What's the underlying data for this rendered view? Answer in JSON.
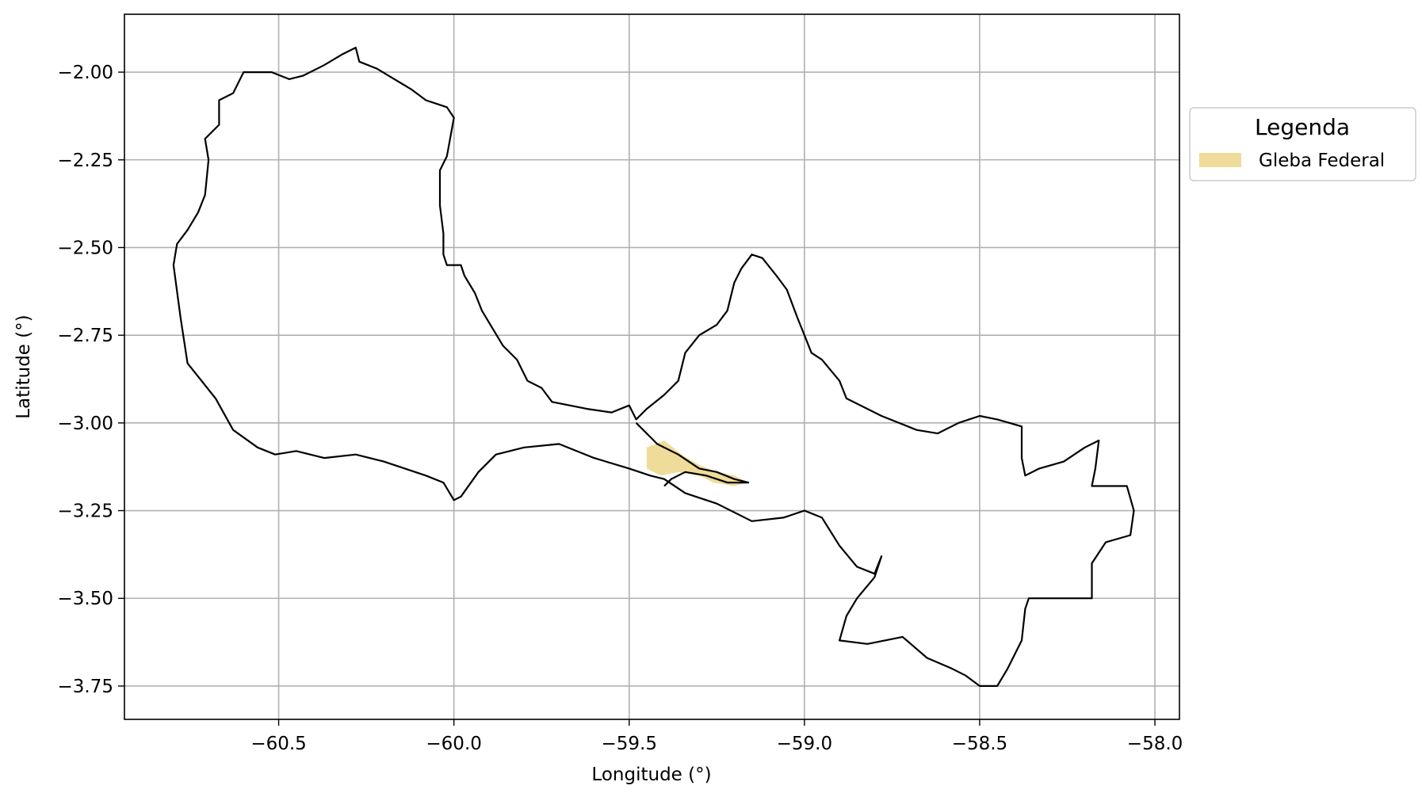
{
  "map": {
    "xlabel": "Longitude (°)",
    "ylabel": "Latitude (°)",
    "xlim": [
      -60.94,
      -57.93
    ],
    "ylim": [
      -3.845,
      -1.835
    ],
    "x_ticks": [
      -60.5,
      -60.0,
      -59.5,
      -59.0,
      -58.5,
      -58.0
    ],
    "x_tick_labels": [
      "−60.5",
      "−60.0",
      "−59.5",
      "−59.0",
      "−58.5",
      "−58.0"
    ],
    "y_ticks": [
      -2.0,
      -2.25,
      -2.5,
      -2.75,
      -3.0,
      -3.25,
      -3.5,
      -3.75
    ],
    "y_tick_labels": [
      "−2.00",
      "−2.25",
      "−2.50",
      "−2.75",
      "−3.00",
      "−3.25",
      "−3.50",
      "−3.75"
    ],
    "grid": true,
    "legend": {
      "title": "Legenda",
      "placement": "outside-right-top",
      "entries": [
        {
          "label": "Gleba Federal",
          "color": "#efdc9a"
        }
      ]
    },
    "colors": {
      "boundary": "#000000",
      "gleba_fill": "#efdc9a",
      "grid": "#b0b0b0"
    },
    "layers": {
      "boundary": [
        [
          -59.48,
          -2.99
        ],
        [
          -59.5,
          -2.95
        ],
        [
          -59.55,
          -2.97
        ],
        [
          -59.62,
          -2.96
        ],
        [
          -59.72,
          -2.94
        ],
        [
          -59.75,
          -2.9
        ],
        [
          -59.79,
          -2.88
        ],
        [
          -59.82,
          -2.82
        ],
        [
          -59.86,
          -2.78
        ],
        [
          -59.89,
          -2.73
        ],
        [
          -59.92,
          -2.68
        ],
        [
          -59.94,
          -2.63
        ],
        [
          -59.97,
          -2.58
        ],
        [
          -59.98,
          -2.55
        ],
        [
          -60.02,
          -2.55
        ],
        [
          -60.03,
          -2.52
        ],
        [
          -60.03,
          -2.46
        ],
        [
          -60.04,
          -2.38
        ],
        [
          -60.04,
          -2.28
        ],
        [
          -60.02,
          -2.24
        ],
        [
          -60.0,
          -2.13
        ],
        [
          -60.02,
          -2.1
        ],
        [
          -60.08,
          -2.08
        ],
        [
          -60.12,
          -2.05
        ],
        [
          -60.17,
          -2.02
        ],
        [
          -60.22,
          -1.99
        ],
        [
          -60.27,
          -1.97
        ],
        [
          -60.28,
          -1.93
        ],
        [
          -60.32,
          -1.95
        ],
        [
          -60.37,
          -1.98
        ],
        [
          -60.43,
          -2.01
        ],
        [
          -60.47,
          -2.02
        ],
        [
          -60.52,
          -2.0
        ],
        [
          -60.6,
          -2.0
        ],
        [
          -60.63,
          -2.06
        ],
        [
          -60.67,
          -2.08
        ],
        [
          -60.67,
          -2.15
        ],
        [
          -60.71,
          -2.19
        ],
        [
          -60.7,
          -2.25
        ],
        [
          -60.71,
          -2.35
        ],
        [
          -60.73,
          -2.4
        ],
        [
          -60.76,
          -2.45
        ],
        [
          -60.79,
          -2.49
        ],
        [
          -60.8,
          -2.55
        ],
        [
          -60.78,
          -2.7
        ],
        [
          -60.76,
          -2.83
        ],
        [
          -60.72,
          -2.88
        ],
        [
          -60.68,
          -2.93
        ],
        [
          -60.63,
          -3.02
        ],
        [
          -60.56,
          -3.07
        ],
        [
          -60.51,
          -3.09
        ],
        [
          -60.45,
          -3.08
        ],
        [
          -60.37,
          -3.1
        ],
        [
          -60.28,
          -3.09
        ],
        [
          -60.2,
          -3.11
        ],
        [
          -60.14,
          -3.13
        ],
        [
          -60.08,
          -3.15
        ],
        [
          -60.03,
          -3.17
        ],
        [
          -60.0,
          -3.22
        ],
        [
          -59.98,
          -3.21
        ],
        [
          -59.93,
          -3.14
        ],
        [
          -59.88,
          -3.09
        ],
        [
          -59.8,
          -3.07
        ],
        [
          -59.7,
          -3.06
        ],
        [
          -59.6,
          -3.1
        ],
        [
          -59.5,
          -3.13
        ],
        [
          -59.44,
          -3.15
        ],
        [
          -59.4,
          -3.16
        ],
        [
          -59.34,
          -3.2
        ],
        [
          -59.25,
          -3.23
        ],
        [
          -59.15,
          -3.28
        ],
        [
          -59.06,
          -3.27
        ],
        [
          -59.0,
          -3.25
        ],
        [
          -58.95,
          -3.27
        ],
        [
          -58.9,
          -3.35
        ],
        [
          -58.85,
          -3.41
        ],
        [
          -58.8,
          -3.43
        ],
        [
          -58.78,
          -3.38
        ],
        [
          -58.8,
          -3.44
        ],
        [
          -58.85,
          -3.5
        ],
        [
          -58.88,
          -3.55
        ],
        [
          -58.9,
          -3.62
        ],
        [
          -58.82,
          -3.63
        ],
        [
          -58.72,
          -3.61
        ],
        [
          -58.65,
          -3.67
        ],
        [
          -58.58,
          -3.7
        ],
        [
          -58.54,
          -3.72
        ],
        [
          -58.5,
          -3.75
        ],
        [
          -58.45,
          -3.75
        ],
        [
          -58.42,
          -3.7
        ],
        [
          -58.38,
          -3.62
        ],
        [
          -58.37,
          -3.53
        ],
        [
          -58.36,
          -3.5
        ],
        [
          -58.18,
          -3.5
        ],
        [
          -58.18,
          -3.4
        ],
        [
          -58.14,
          -3.34
        ],
        [
          -58.07,
          -3.32
        ],
        [
          -58.06,
          -3.25
        ],
        [
          -58.08,
          -3.18
        ],
        [
          -58.18,
          -3.18
        ],
        [
          -58.17,
          -3.13
        ],
        [
          -58.16,
          -3.05
        ],
        [
          -58.2,
          -3.07
        ],
        [
          -58.26,
          -3.11
        ],
        [
          -58.33,
          -3.13
        ],
        [
          -58.37,
          -3.15
        ],
        [
          -58.38,
          -3.1
        ],
        [
          -58.38,
          -3.01
        ],
        [
          -58.45,
          -2.99
        ],
        [
          -58.5,
          -2.98
        ],
        [
          -58.56,
          -3.0
        ],
        [
          -58.62,
          -3.03
        ],
        [
          -58.68,
          -3.02
        ],
        [
          -58.78,
          -2.98
        ],
        [
          -58.88,
          -2.93
        ],
        [
          -58.9,
          -2.88
        ],
        [
          -58.95,
          -2.82
        ],
        [
          -58.98,
          -2.8
        ],
        [
          -59.0,
          -2.75
        ],
        [
          -59.02,
          -2.7
        ],
        [
          -59.05,
          -2.62
        ],
        [
          -59.08,
          -2.58
        ],
        [
          -59.12,
          -2.53
        ],
        [
          -59.15,
          -2.52
        ],
        [
          -59.18,
          -2.56
        ],
        [
          -59.2,
          -2.6
        ],
        [
          -59.22,
          -2.68
        ],
        [
          -59.25,
          -2.72
        ],
        [
          -59.3,
          -2.75
        ],
        [
          -59.34,
          -2.8
        ],
        [
          -59.36,
          -2.88
        ],
        [
          -59.4,
          -2.92
        ],
        [
          -59.45,
          -2.96
        ],
        [
          -59.48,
          -2.99
        ]
      ],
      "inner_boundary": [
        [
          -59.48,
          -3.0
        ],
        [
          -59.42,
          -3.06
        ],
        [
          -59.36,
          -3.09
        ],
        [
          -59.3,
          -3.13
        ],
        [
          -59.25,
          -3.14
        ],
        [
          -59.2,
          -3.16
        ],
        [
          -59.16,
          -3.17
        ],
        [
          -59.22,
          -3.17
        ],
        [
          -59.28,
          -3.15
        ],
        [
          -59.34,
          -3.14
        ],
        [
          -59.38,
          -3.16
        ],
        [
          -59.4,
          -3.18
        ]
      ],
      "gleba_federal": [
        [
          -59.45,
          -3.07
        ],
        [
          -59.4,
          -3.05
        ],
        [
          -59.35,
          -3.09
        ],
        [
          -59.3,
          -3.12
        ],
        [
          -59.25,
          -3.14
        ],
        [
          -59.2,
          -3.15
        ],
        [
          -59.16,
          -3.17
        ],
        [
          -59.2,
          -3.18
        ],
        [
          -59.26,
          -3.17
        ],
        [
          -59.3,
          -3.15
        ],
        [
          -59.36,
          -3.14
        ],
        [
          -59.41,
          -3.15
        ],
        [
          -59.45,
          -3.13
        ]
      ]
    }
  }
}
